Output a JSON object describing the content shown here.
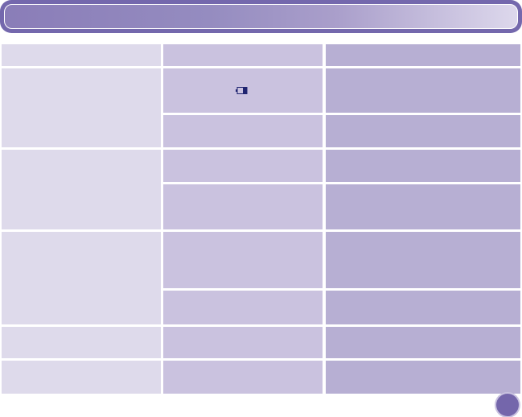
{
  "colors": {
    "title_bar_border": "#7468ad",
    "column_1": "#dedaeb",
    "column_2": "#cac2df",
    "column_3": "#b7afd3",
    "icon": "#1f2470",
    "page_marker": "#7466ab"
  },
  "icons": {
    "battery": "battery-icon"
  }
}
